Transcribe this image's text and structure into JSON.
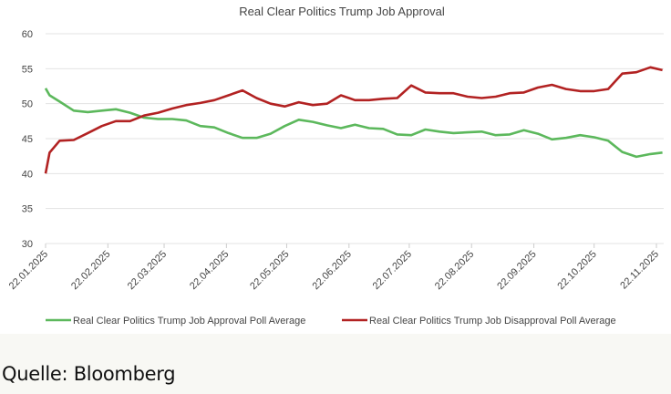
{
  "chart_data": {
    "type": "line",
    "title": "Real Clear Politics Trump Job Approval",
    "xlabel": "",
    "ylabel": "",
    "ylim": [
      30,
      60
    ],
    "yticks": [
      30,
      35,
      40,
      45,
      50,
      55,
      60
    ],
    "xlim": [
      "2025-01-22",
      "2025-11-25"
    ],
    "xtick_labels": [
      "22.01.2025",
      "22.02.2025",
      "22.03.2025",
      "22.04.2025",
      "22.05.2025",
      "22.06.2025",
      "22.07.2025",
      "22.08.2025",
      "22.09.2025",
      "22.10.2025",
      "22.11.2025"
    ],
    "xtick_dates": [
      "2025-01-22",
      "2025-02-22",
      "2025-03-22",
      "2025-04-22",
      "2025-05-22",
      "2025-06-22",
      "2025-07-22",
      "2025-08-22",
      "2025-09-22",
      "2025-10-22",
      "2025-11-22"
    ],
    "grid": "horizontal",
    "legend_position": "bottom",
    "x": [
      "2025-01-22",
      "2025-01-24",
      "2025-01-29",
      "2025-02-05",
      "2025-02-12",
      "2025-02-19",
      "2025-02-26",
      "2025-03-05",
      "2025-03-12",
      "2025-03-19",
      "2025-03-26",
      "2025-04-02",
      "2025-04-09",
      "2025-04-16",
      "2025-04-23",
      "2025-04-30",
      "2025-05-07",
      "2025-05-14",
      "2025-05-21",
      "2025-05-28",
      "2025-06-04",
      "2025-06-11",
      "2025-06-18",
      "2025-06-25",
      "2025-07-02",
      "2025-07-09",
      "2025-07-16",
      "2025-07-23",
      "2025-07-30",
      "2025-08-06",
      "2025-08-13",
      "2025-08-20",
      "2025-08-27",
      "2025-09-03",
      "2025-09-10",
      "2025-09-17",
      "2025-09-24",
      "2025-10-01",
      "2025-10-08",
      "2025-10-15",
      "2025-10-22",
      "2025-10-29",
      "2025-11-05",
      "2025-11-12",
      "2025-11-19",
      "2025-11-25"
    ],
    "series": [
      {
        "name": "Real Clear Politics Trump Job Approval Poll Average",
        "color": "#5cb85c",
        "values": [
          52.2,
          51.2,
          50.3,
          49.0,
          48.8,
          49.0,
          49.2,
          48.7,
          48.0,
          47.8,
          47.8,
          47.6,
          46.8,
          46.6,
          45.8,
          45.1,
          45.1,
          45.7,
          46.8,
          47.7,
          47.4,
          46.9,
          46.5,
          47.0,
          46.5,
          46.4,
          45.6,
          45.5,
          46.3,
          46.0,
          45.8,
          45.9,
          46.0,
          45.5,
          45.6,
          46.2,
          45.7,
          44.9,
          45.1,
          45.5,
          45.2,
          44.7,
          43.1,
          42.4,
          42.8,
          43.0
        ]
      },
      {
        "name": "Real Clear Politics Trump Job Disapproval Poll Average",
        "color": "#b22222",
        "values": [
          40.0,
          43.0,
          44.7,
          44.8,
          45.8,
          46.8,
          47.5,
          47.5,
          48.3,
          48.7,
          49.3,
          49.8,
          50.1,
          50.5,
          51.2,
          51.9,
          50.8,
          50.0,
          49.6,
          50.2,
          49.8,
          50.0,
          51.2,
          50.5,
          50.5,
          50.7,
          50.8,
          52.6,
          51.6,
          51.5,
          51.5,
          51.0,
          50.8,
          51.0,
          51.5,
          51.6,
          52.3,
          52.7,
          52.1,
          51.8,
          51.8,
          52.1,
          54.3,
          54.5,
          55.2,
          54.8
        ]
      }
    ]
  },
  "source": "Quelle: Bloomberg"
}
